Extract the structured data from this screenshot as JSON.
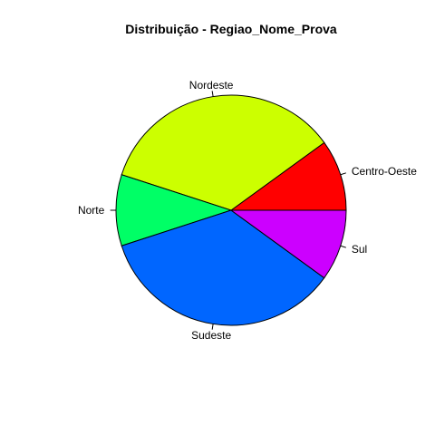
{
  "chart_data": {
    "type": "pie",
    "title": "Distribuição - Regiao_Nome_Prova",
    "direction": "counterclockwise",
    "start_angle_deg": 0,
    "slices": [
      {
        "label": "Centro-Oeste",
        "value": 10,
        "color": "#FF0000"
      },
      {
        "label": "Nordeste",
        "value": 35,
        "color": "#CCFF00"
      },
      {
        "label": "Norte",
        "value": 10,
        "color": "#00FF66"
      },
      {
        "label": "Sudeste",
        "value": 35,
        "color": "#0066FF"
      },
      {
        "label": "Sul",
        "value": 10,
        "color": "#CC00FF"
      }
    ]
  }
}
